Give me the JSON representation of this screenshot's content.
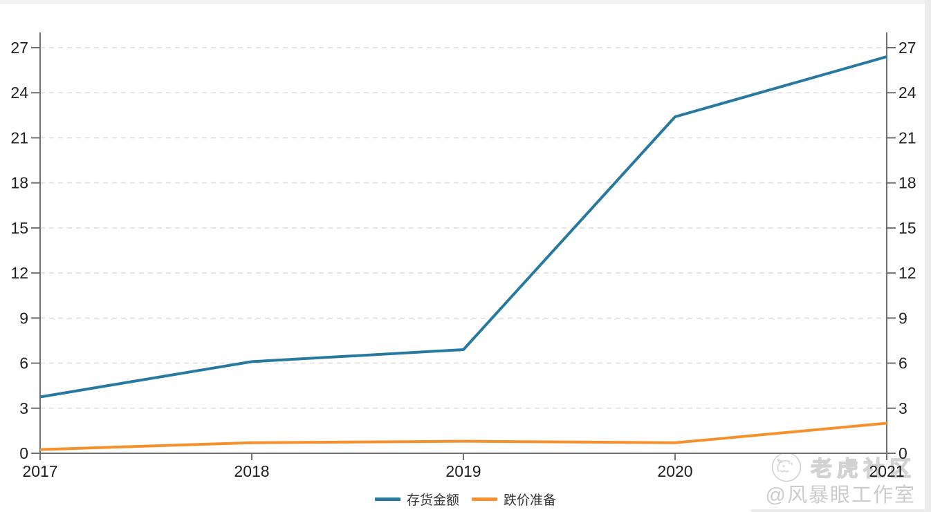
{
  "page": {
    "background": "#ffffff",
    "edge_color": "#ececec"
  },
  "chart_data": {
    "type": "line",
    "title": "",
    "categories": [
      "2017",
      "2018",
      "2019",
      "2020",
      "2021"
    ],
    "series": [
      {
        "name": "存货金额",
        "color": "#27799f",
        "values": [
          3.75,
          6.1,
          6.9,
          22.4,
          26.4
        ]
      },
      {
        "name": "跌价准备",
        "color": "#f5912d",
        "values": [
          0.25,
          0.7,
          0.8,
          0.7,
          2.0
        ]
      }
    ],
    "y_axis": {
      "min": 0,
      "max": 27,
      "ticks": [
        0,
        3,
        6,
        9,
        12,
        15,
        18,
        21,
        24,
        27
      ],
      "dual_sided": true
    },
    "x_axis": {
      "ticks": [
        "2017",
        "2018",
        "2019",
        "2020",
        "2021"
      ]
    },
    "grid": {
      "horizontal": true,
      "style": "dashed",
      "color": "#dcdcdc"
    },
    "axis_color": "#6f6f6f",
    "tick_label_color": "#1f1f1f",
    "line_width": 4,
    "legend_position": "bottom-center"
  },
  "legend": {
    "items": [
      {
        "label": "存货金额",
        "color": "#27799f"
      },
      {
        "label": "跌价准备",
        "color": "#f5912d"
      }
    ]
  },
  "watermark": {
    "logo": "tiger-logo",
    "community_name": "老虎社区",
    "studio_handle": "@风暴眼工作室"
  }
}
